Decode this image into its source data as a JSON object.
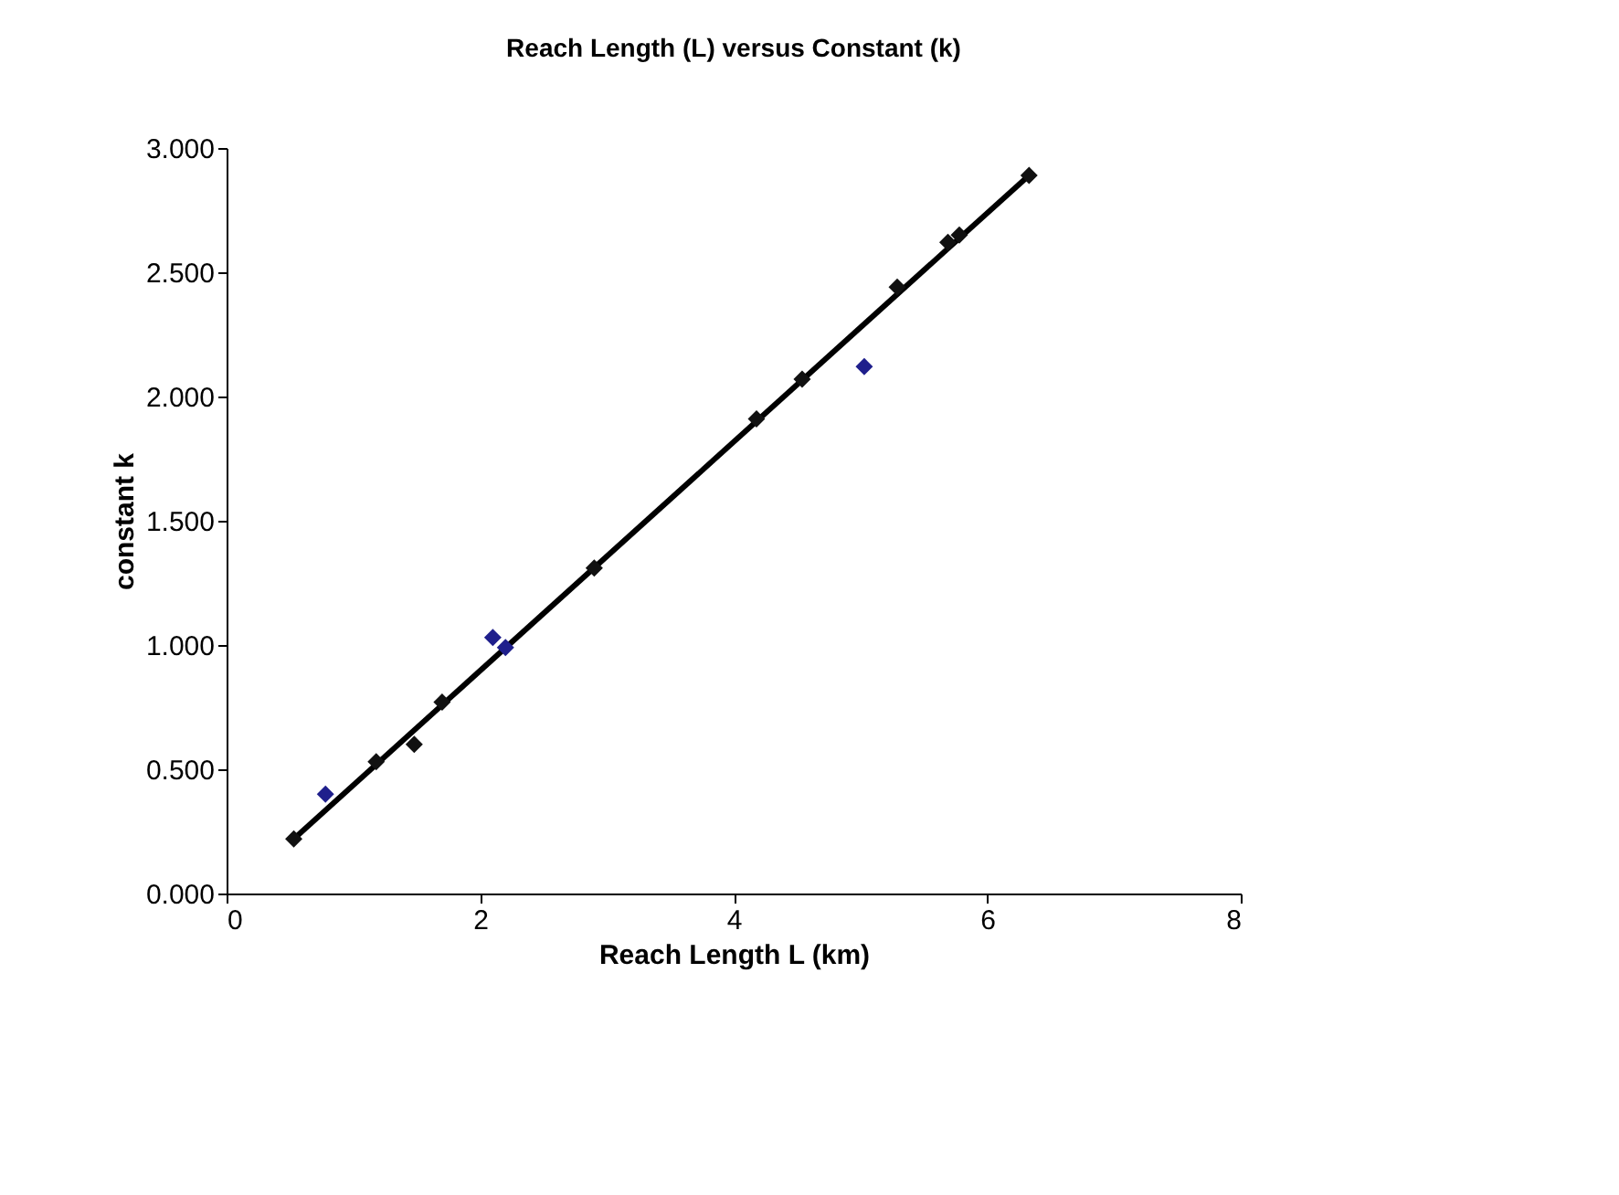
{
  "chart_data": {
    "type": "scatter",
    "title": "Reach Length (L) versus Constant (k)",
    "xlabel": "Reach Length L (km)",
    "ylabel": "constant k",
    "xlim": [
      0,
      8
    ],
    "xticks": [
      0,
      2,
      4,
      6,
      8
    ],
    "ylim": [
      0,
      3
    ],
    "yticks": [
      {
        "value": 0,
        "label": "0.000"
      },
      {
        "value": 0.5,
        "label": "0.500"
      },
      {
        "value": 1,
        "label": "1.000"
      },
      {
        "value": 1.5,
        "label": "1.500"
      },
      {
        "value": 2,
        "label": "2.000"
      },
      {
        "value": 2.5,
        "label": "2.500"
      },
      {
        "value": 3,
        "label": "3.000"
      }
    ],
    "grid": false,
    "legend": false,
    "marker": "diamond",
    "series": [
      {
        "type": "line",
        "color": "#000000",
        "marker": "none",
        "line_style": "solid",
        "x": [
          0.53,
          6.33
        ],
        "values": [
          0.22,
          2.89
        ]
      },
      {
        "color": "#111111",
        "x": [
          0.53,
          1.18,
          1.48,
          1.7,
          2.9,
          4.18,
          4.54,
          5.29,
          5.69,
          5.78,
          6.33
        ],
        "values": [
          0.22,
          0.53,
          0.6,
          0.77,
          1.31,
          1.91,
          2.07,
          2.44,
          2.62,
          2.65,
          2.89
        ]
      },
      {
        "color": "#1f1f8c",
        "x": [
          0.78,
          2.1,
          2.2,
          5.03
        ],
        "values": [
          0.4,
          1.03,
          0.99,
          2.12
        ]
      }
    ]
  }
}
